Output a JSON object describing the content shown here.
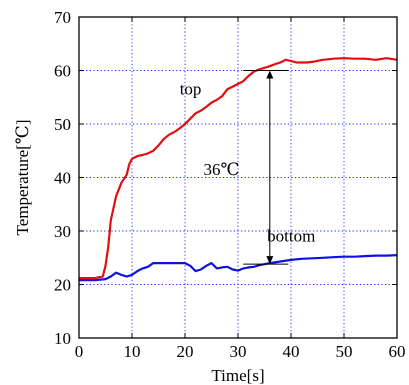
{
  "chart_data": {
    "type": "line",
    "xlabel": "Time[s]",
    "ylabel": "Temperature[℃]",
    "xlim": [
      0,
      60
    ],
    "ylim": [
      10,
      70
    ],
    "xticks": [
      0,
      10,
      20,
      30,
      40,
      50,
      60
    ],
    "yticks": [
      10,
      20,
      30,
      40,
      50,
      60,
      70
    ],
    "grid": true,
    "series": [
      {
        "name": "top",
        "color": "#e01010",
        "x": [
          0,
          3,
          4.5,
          5,
          5.5,
          6,
          7,
          8,
          9,
          9.5,
          10,
          11,
          12,
          13,
          14,
          15,
          16,
          17,
          18,
          19,
          20,
          21,
          22,
          23,
          24,
          25,
          26,
          27,
          28,
          29,
          30,
          31,
          32,
          33,
          34,
          35,
          36,
          37,
          38,
          39,
          40,
          41,
          42,
          43,
          44,
          45,
          46,
          47,
          48,
          50,
          52,
          54,
          56,
          58,
          60
        ],
        "values": [
          21.2,
          21.2,
          21.5,
          23.5,
          27,
          32,
          36.5,
          39,
          40.5,
          42.5,
          43.5,
          44,
          44.2,
          44.5,
          45,
          46,
          47.2,
          48,
          48.5,
          49.2,
          50,
          51,
          52,
          52.5,
          53.2,
          54,
          54.5,
          55.2,
          56.5,
          57,
          57.5,
          58,
          59,
          59.8,
          60.2,
          60.5,
          60.8,
          61.2,
          61.5,
          62,
          61.8,
          61.5,
          61.5,
          61.5,
          61.6,
          61.8,
          62,
          62.1,
          62.2,
          62.3,
          62.2,
          62.2,
          62,
          62.3,
          62
        ]
      },
      {
        "name": "bottom",
        "color": "#1010e0",
        "x": [
          0,
          3,
          5,
          6,
          7,
          8,
          9,
          10,
          11,
          12,
          13,
          14,
          15,
          16,
          18,
          20,
          21,
          22,
          23,
          24,
          25,
          26,
          27,
          28,
          29,
          30,
          31,
          32,
          33,
          34,
          35,
          36,
          38,
          40,
          42,
          44,
          46,
          48,
          50,
          52,
          54,
          56,
          58,
          60
        ],
        "values": [
          20.8,
          20.8,
          21,
          21.5,
          22.2,
          21.8,
          21.5,
          21.8,
          22.5,
          23,
          23.3,
          24,
          24,
          24,
          24,
          24,
          23.5,
          22.5,
          22.8,
          23.5,
          24,
          23,
          23.2,
          23.3,
          22.8,
          22.6,
          23,
          23.2,
          23.3,
          23.6,
          23.8,
          24,
          24.3,
          24.6,
          24.8,
          24.9,
          25,
          25.1,
          25.2,
          25.2,
          25.3,
          25.4,
          25.4,
          25.5
        ]
      }
    ],
    "annotations": {
      "top_label": "top",
      "bottom_label": "bottom",
      "diff_label": "36℃",
      "arrow_x": 36,
      "arrow_from": 23.8,
      "arrow_to": 60
    }
  }
}
